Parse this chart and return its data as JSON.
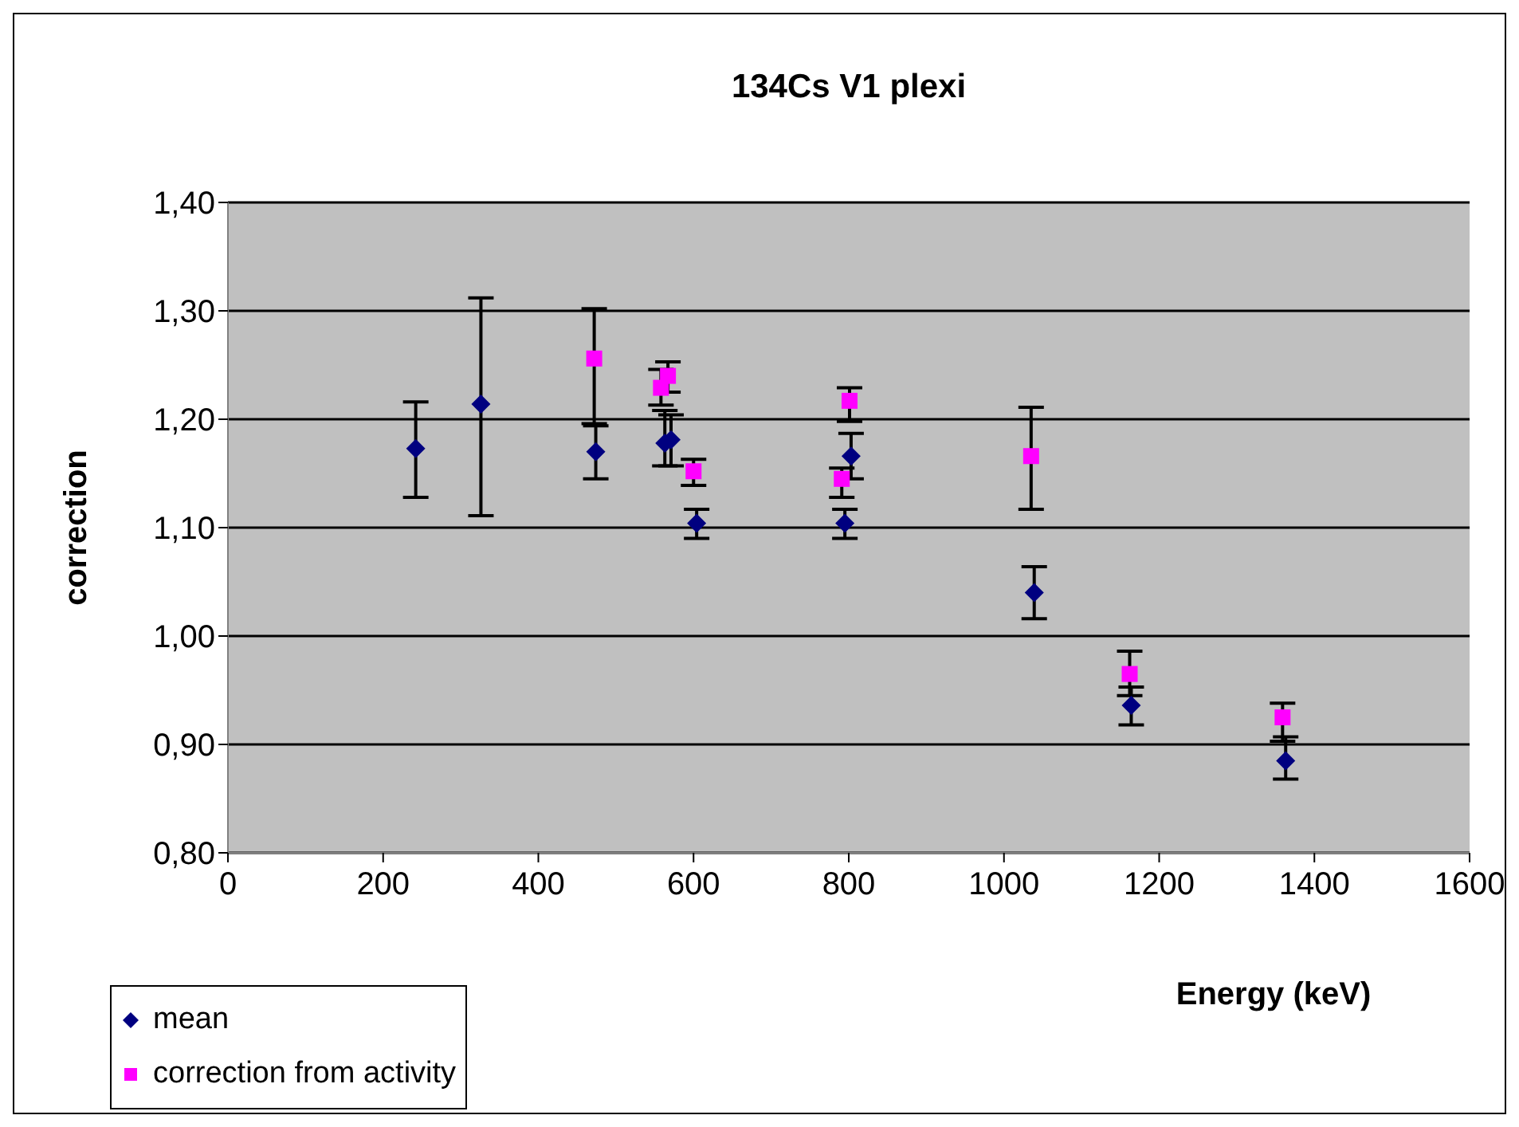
{
  "chart_data": {
    "type": "scatter",
    "title": "134Cs V1 plexi",
    "xlabel": "Energy (keV)",
    "ylabel": "correction",
    "xlim": [
      0,
      1600
    ],
    "xticks": [
      0,
      200,
      400,
      600,
      800,
      1000,
      1200,
      1400,
      1600
    ],
    "ylim": [
      0.8,
      1.4
    ],
    "yticks": [
      {
        "value": 0.8,
        "label": "0,80"
      },
      {
        "value": 0.9,
        "label": "0,90"
      },
      {
        "value": 1.0,
        "label": "1,00"
      },
      {
        "value": 1.1,
        "label": "1,10"
      },
      {
        "value": 1.2,
        "label": "1,20"
      },
      {
        "value": 1.3,
        "label": "1,30"
      },
      {
        "value": 1.4,
        "label": "1,40"
      }
    ],
    "grid": "y",
    "legend": "bottom left",
    "series": [
      {
        "name": "mean",
        "color": "#000080",
        "marker": "diamond",
        "x": [
          242,
          326,
          474,
          563,
          571,
          604,
          795,
          803,
          1039,
          1164,
          1363
        ],
        "values": [
          1.173,
          1.214,
          1.17,
          1.178,
          1.181,
          1.104,
          1.104,
          1.166,
          1.04,
          0.936,
          0.885
        ],
        "errors": [
          [
            1.128,
            1.216
          ],
          [
            1.111,
            1.312
          ],
          [
            1.145,
            1.194
          ],
          [
            1.157,
            1.208
          ],
          [
            1.157,
            1.204
          ],
          [
            1.09,
            1.117
          ],
          [
            1.09,
            1.117
          ],
          [
            1.145,
            1.187
          ],
          [
            1.016,
            1.064
          ],
          [
            0.918,
            0.953
          ],
          [
            0.868,
            0.907
          ]
        ]
      },
      {
        "name": "correction from activity",
        "color": "#ff00ff",
        "marker": "square",
        "x": [
          472,
          558,
          567,
          600,
          791,
          801,
          1035,
          1162,
          1359
        ],
        "values": [
          1.256,
          1.229,
          1.24,
          1.152,
          1.145,
          1.217,
          1.166,
          0.965,
          0.925
        ],
        "errors": [
          [
            1.196,
            1.302
          ],
          [
            1.213,
            1.246
          ],
          [
            1.225,
            1.253
          ],
          [
            1.139,
            1.163
          ],
          [
            1.128,
            1.155
          ],
          [
            1.198,
            1.229
          ],
          [
            1.117,
            1.211
          ],
          [
            0.945,
            0.986
          ],
          [
            0.903,
            0.938
          ]
        ]
      }
    ]
  }
}
